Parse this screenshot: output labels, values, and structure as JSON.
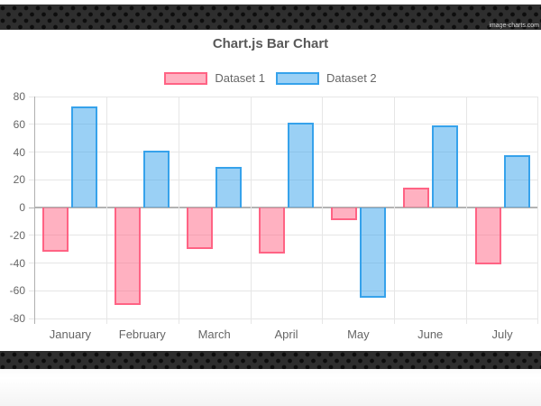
{
  "watermark": "image-charts.com",
  "title": "Chart.js Bar Chart",
  "chart_data": {
    "type": "bar",
    "title": "Chart.js Bar Chart",
    "categories": [
      "January",
      "February",
      "March",
      "April",
      "May",
      "June",
      "July"
    ],
    "series": [
      {
        "name": "Dataset 1",
        "values": [
          -32,
          -70,
          -30,
          -33,
          -9,
          14,
          -41
        ],
        "fill": "rgba(255,99,132,0.5)",
        "border": "#ff6384"
      },
      {
        "name": "Dataset 2",
        "values": [
          73,
          41,
          29,
          61,
          -65,
          59,
          38
        ],
        "fill": "rgba(54,162,235,0.5)",
        "border": "#36a2eb"
      }
    ],
    "xlabel": "",
    "ylabel": "",
    "ylim": [
      -80,
      80
    ],
    "yticks": [
      80,
      60,
      40,
      20,
      0,
      -20,
      -40,
      -60,
      -80
    ],
    "grid": true,
    "legend_position": "top"
  },
  "colors": {
    "grid_line": "#e6e6e6",
    "zero_line": "#b3b3b3",
    "axis_text": "#666666",
    "title_text": "#595959",
    "band_background": "#2e2e2e",
    "band_dot": "#0d0d0d",
    "page_background": "#ffffff"
  }
}
